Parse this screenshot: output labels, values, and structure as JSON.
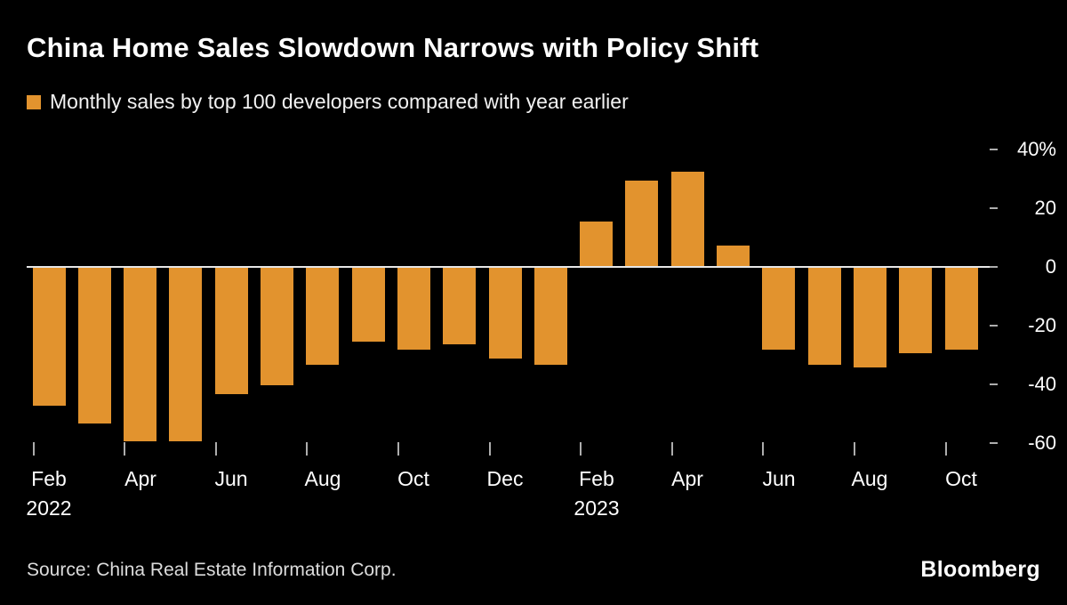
{
  "header": {
    "title": "China Home Sales Slowdown Narrows with Policy Shift",
    "legend_label": "Monthly sales by top 100 developers compared with year earlier"
  },
  "footer": {
    "source": "Source: China Real Estate Information Corp.",
    "brand": "Bloomberg"
  },
  "colors": {
    "background": "#000000",
    "bar": "#E2932E",
    "title_text": "#FFFFFF",
    "axis_text": "#FFFFFF",
    "gridline": "#E6E6E6",
    "tick": "#ADADAD",
    "source_text": "#DCDCDC"
  },
  "chart_data": {
    "type": "bar",
    "title": "China Home Sales Slowdown Narrows with Policy Shift",
    "subtitle": "Monthly sales by top 100 developers compared with year earlier",
    "series_name": "Monthly sales by top 100 developers compared with year earlier",
    "unit": "%",
    "categories": [
      "Feb 2022",
      "Mar 2022",
      "Apr 2022",
      "May 2022",
      "Jun 2022",
      "Jul 2022",
      "Aug 2022",
      "Sep 2022",
      "Oct 2022",
      "Nov 2022",
      "Dec 2022",
      "Jan 2023",
      "Feb 2023",
      "Mar 2023",
      "Apr 2023",
      "May 2023",
      "Jun 2023",
      "Jul 2023",
      "Aug 2023",
      "Sep 2023",
      "Oct 2023"
    ],
    "values": [
      -47,
      -53,
      -59,
      -59,
      -43,
      -40,
      -33,
      -25,
      -28,
      -26,
      -31,
      -33,
      15,
      29,
      32,
      7,
      -28,
      -33,
      -34,
      -29,
      -28
    ],
    "y_ticks": [
      {
        "value": 40,
        "label": "40%"
      },
      {
        "value": 20,
        "label": "20"
      },
      {
        "value": 0,
        "label": "0"
      },
      {
        "value": -20,
        "label": "-20"
      },
      {
        "value": -40,
        "label": "-40"
      },
      {
        "value": -60,
        "label": "-60"
      }
    ],
    "x_ticks": [
      {
        "index": 0,
        "label": "Feb",
        "year": "2022"
      },
      {
        "index": 2,
        "label": "Apr"
      },
      {
        "index": 4,
        "label": "Jun"
      },
      {
        "index": 6,
        "label": "Aug"
      },
      {
        "index": 8,
        "label": "Oct"
      },
      {
        "index": 10,
        "label": "Dec"
      },
      {
        "index": 12,
        "label": "Feb",
        "year": "2023"
      },
      {
        "index": 14,
        "label": "Apr"
      },
      {
        "index": 16,
        "label": "Jun"
      },
      {
        "index": 18,
        "label": "Aug"
      },
      {
        "index": 20,
        "label": "Oct"
      }
    ],
    "ylim": [
      -66,
      44
    ],
    "xlabel": "",
    "ylabel": "",
    "grid": "zero-line-only",
    "axis_side": "right",
    "legend_position": "top-left"
  }
}
